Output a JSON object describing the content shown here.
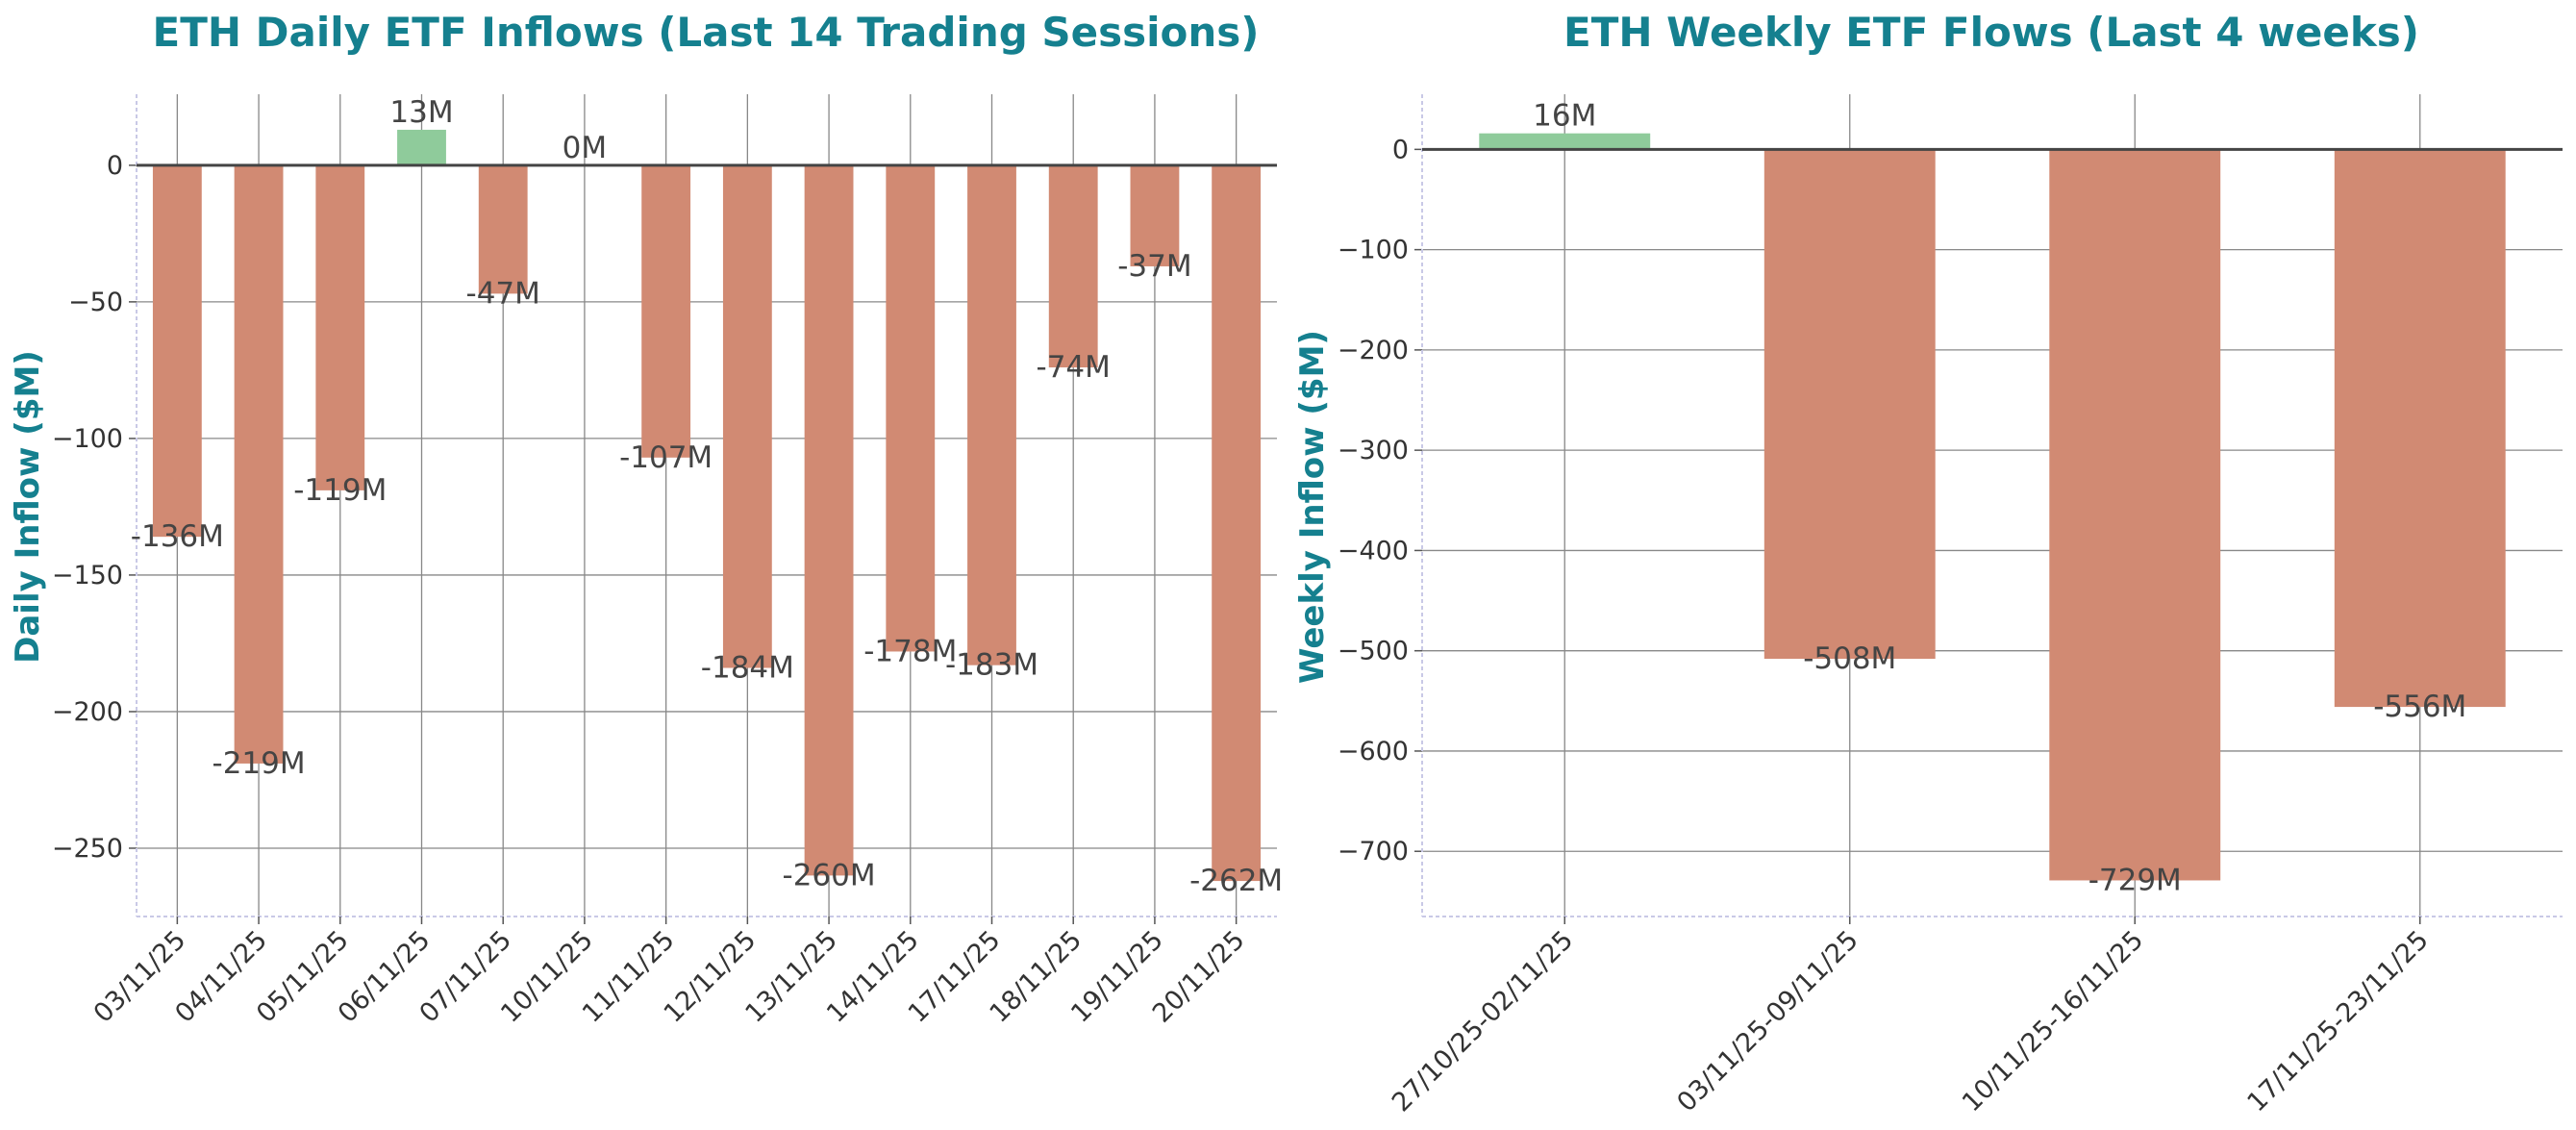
{
  "chart_data": [
    {
      "type": "bar",
      "title": "ETH Daily ETF Inflows (Last 14 Trading Sessions)",
      "xlabel": "",
      "ylabel": "Daily Inflow ($M)",
      "categories": [
        "03/11/25",
        "04/11/25",
        "05/11/25",
        "06/11/25",
        "07/11/25",
        "10/11/25",
        "11/11/25",
        "12/11/25",
        "13/11/25",
        "14/11/25",
        "17/11/25",
        "18/11/25",
        "19/11/25",
        "20/11/25"
      ],
      "values": [
        -136,
        -219,
        -119,
        13,
        -47,
        0,
        -107,
        -184,
        -260,
        -178,
        -183,
        -74,
        -37,
        -262
      ],
      "data_labels": [
        "-136M",
        "-219M",
        "-119M",
        "13M",
        "-47M",
        "0M",
        "-107M",
        "-184M",
        "-260M",
        "-178M",
        "-183M",
        "-74M",
        "-37M",
        "-262M"
      ],
      "ylim": [
        -275,
        26
      ],
      "yticks": [
        0,
        -50,
        -100,
        -150,
        -200,
        -250
      ],
      "ytick_labels": [
        "0",
        "−50",
        "−100",
        "−150",
        "−200",
        "−250"
      ],
      "grid": true,
      "colors": {
        "positive": "#8fcb9b",
        "negative": "#d18a73"
      }
    },
    {
      "type": "bar",
      "title": "ETH Weekly ETF Flows (Last 4 weeks)",
      "xlabel": "",
      "ylabel": "Weekly Inflow ($M)",
      "categories": [
        "27/10/25-02/11/25",
        "03/11/25-09/11/25",
        "10/11/25-16/11/25",
        "17/11/25-23/11/25"
      ],
      "values": [
        16,
        -508,
        -729,
        -556
      ],
      "data_labels": [
        "16M",
        "-508M",
        "-729M",
        "-556M"
      ],
      "ylim": [
        -765,
        55
      ],
      "yticks": [
        0,
        -100,
        -200,
        -300,
        -400,
        -500,
        -600,
        -700
      ],
      "ytick_labels": [
        "0",
        "−100",
        "−200",
        "−300",
        "−400",
        "−500",
        "−600",
        "−700"
      ],
      "grid": true,
      "colors": {
        "positive": "#8fcb9b",
        "negative": "#d18a73"
      }
    }
  ]
}
